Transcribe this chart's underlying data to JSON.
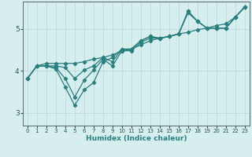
{
  "xlabel": "Humidex (Indice chaleur)",
  "ylabel": "",
  "xlim": [
    -0.5,
    23.5
  ],
  "ylim": [
    2.7,
    5.65
  ],
  "yticks": [
    3,
    4,
    5
  ],
  "xticks": [
    0,
    1,
    2,
    3,
    4,
    5,
    6,
    7,
    8,
    9,
    10,
    11,
    12,
    13,
    14,
    15,
    16,
    17,
    18,
    19,
    20,
    21,
    22,
    23
  ],
  "bg_color": "#d6eeee",
  "grid_color": "#b8d8d8",
  "line_color": "#2a7f7f",
  "line_width": 0.9,
  "marker": "D",
  "marker_size": 2.2,
  "lines": [
    {
      "x": [
        0,
        1,
        2,
        3,
        4,
        5,
        6,
        7,
        8,
        9,
        10,
        11,
        12,
        13,
        14,
        15,
        16,
        17,
        18,
        19,
        20,
        21,
        22,
        23
      ],
      "y": [
        3.82,
        4.12,
        4.12,
        4.05,
        3.62,
        3.18,
        3.55,
        3.72,
        4.22,
        4.32,
        4.52,
        4.52,
        4.72,
        4.82,
        4.78,
        4.82,
        4.88,
        5.42,
        5.18,
        5.02,
        5.02,
        5.02,
        5.28,
        5.52
      ]
    },
    {
      "x": [
        0,
        1,
        2,
        3,
        4,
        5,
        6,
        7,
        8,
        9,
        10,
        11,
        12,
        13,
        14,
        15,
        16,
        17,
        18,
        19,
        20,
        21,
        22,
        23
      ],
      "y": [
        3.82,
        4.12,
        4.12,
        4.08,
        3.82,
        3.38,
        3.78,
        4.02,
        4.28,
        4.12,
        4.48,
        4.48,
        4.68,
        4.78,
        4.78,
        4.82,
        4.88,
        5.38,
        5.18,
        5.02,
        5.02,
        5.02,
        5.28,
        5.52
      ]
    },
    {
      "x": [
        0,
        1,
        2,
        3,
        4,
        5,
        6,
        7,
        8,
        9,
        10,
        11,
        12,
        13,
        14,
        15,
        16,
        17,
        18,
        19,
        20,
        21,
        22,
        23
      ],
      "y": [
        3.82,
        4.12,
        4.12,
        4.12,
        4.08,
        3.82,
        4.02,
        4.12,
        4.32,
        4.22,
        4.52,
        4.52,
        4.72,
        4.82,
        4.78,
        4.82,
        4.88,
        5.42,
        5.18,
        5.02,
        5.02,
        5.02,
        5.28,
        5.52
      ]
    },
    {
      "x": [
        0,
        1,
        2,
        3,
        4,
        5,
        6,
        7,
        8,
        9,
        10,
        11,
        12,
        13,
        14,
        15,
        16,
        17,
        18,
        19,
        20,
        21,
        22,
        23
      ],
      "y": [
        3.82,
        4.12,
        4.18,
        4.18,
        4.18,
        4.18,
        4.22,
        4.28,
        4.32,
        4.38,
        4.48,
        4.52,
        4.62,
        4.72,
        4.78,
        4.82,
        4.88,
        4.92,
        4.98,
        5.02,
        5.08,
        5.12,
        5.28,
        5.52
      ]
    }
  ]
}
